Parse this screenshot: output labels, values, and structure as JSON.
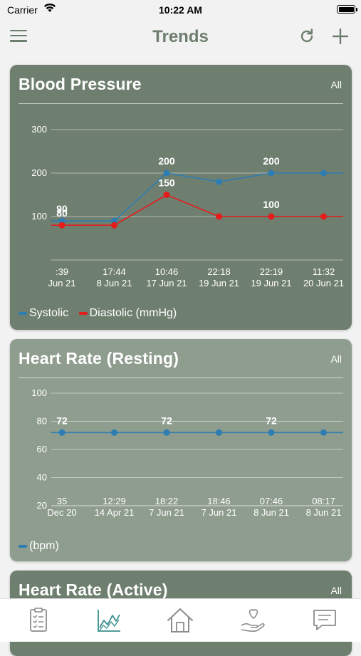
{
  "status_bar": {
    "carrier": "Carrier",
    "time": "10:22 AM"
  },
  "nav": {
    "title": "Trends"
  },
  "colors": {
    "nav_accent": "#6e7e6e",
    "card1_bg": "#6f7f6f",
    "card2_bg": "#8e9d8e",
    "systolic": "#2d7db3",
    "diastolic": "#e41c1c",
    "bpm": "#2d7db3"
  },
  "cards": [
    {
      "title": "Blood Pressure",
      "range": "All",
      "legend": [
        {
          "label": "Systolic",
          "color": "#2d7db3"
        },
        {
          "label": "Diastolic (mmHg)",
          "color": "#e41c1c"
        }
      ]
    },
    {
      "title": "Heart Rate (Resting)",
      "range": "All",
      "legend": [
        {
          "label": "(bpm)",
          "color": "#2d7db3"
        }
      ]
    },
    {
      "title": "Heart Rate (Active)",
      "range": "All"
    }
  ],
  "chart_data": [
    {
      "type": "line",
      "title": "Blood Pressure",
      "ylim": [
        0,
        300
      ],
      "yticks": [
        "300",
        "200",
        "100"
      ],
      "xticks": [
        {
          "time": ":39",
          "date": "Jun 21"
        },
        {
          "time": "17:44",
          "date": "8 Jun 21"
        },
        {
          "time": "10:46",
          "date": "17 Jun 21"
        },
        {
          "time": "22:18",
          "date": "19 Jun 21"
        },
        {
          "time": "22:19",
          "date": "19 Jun 21"
        },
        {
          "time": "11:32",
          "date": "20 Jun 21"
        }
      ],
      "series": [
        {
          "name": "Systolic",
          "color": "#2d7db3",
          "values": [
            90,
            90,
            200,
            180,
            200,
            200
          ],
          "labels": [
            "90",
            "",
            "200",
            "",
            "200",
            ""
          ]
        },
        {
          "name": "Diastolic (mmHg)",
          "color": "#e41c1c",
          "values": [
            80,
            80,
            150,
            100,
            100,
            100
          ],
          "labels": [
            "80",
            "",
            "150",
            "",
            "100",
            ""
          ]
        }
      ],
      "grid": true,
      "legend": "bottom-left"
    },
    {
      "type": "line",
      "title": "Heart Rate (Resting)",
      "ylim": [
        20,
        100
      ],
      "yticks": [
        "100",
        "80",
        "60",
        "40",
        "20"
      ],
      "xticks": [
        {
          "time": "35",
          "date": "Dec 20"
        },
        {
          "time": "12:29",
          "date": "14 Apr 21"
        },
        {
          "time": "18:22",
          "date": "7 Jun 21"
        },
        {
          "time": "18:46",
          "date": "7 Jun 21"
        },
        {
          "time": "07:46",
          "date": "8 Jun 21"
        },
        {
          "time": "08:17",
          "date": "8 Jun 21"
        }
      ],
      "series": [
        {
          "name": "(bpm)",
          "color": "#2d7db3",
          "values": [
            72,
            72,
            72,
            72,
            72,
            72
          ],
          "labels": [
            "72",
            "",
            "72",
            "",
            "72",
            ""
          ]
        }
      ],
      "grid": true,
      "legend": "bottom-left"
    }
  ],
  "tabs": [
    {
      "name": "checklist-icon"
    },
    {
      "name": "trends-icon",
      "active": true
    },
    {
      "name": "home-icon"
    },
    {
      "name": "care-icon"
    },
    {
      "name": "messages-icon"
    }
  ]
}
